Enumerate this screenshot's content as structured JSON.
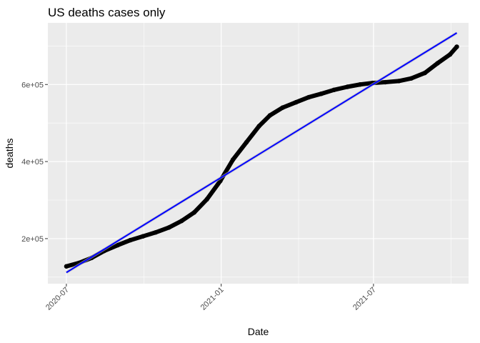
{
  "chart_data": {
    "type": "line",
    "title": "US deaths cases only",
    "xlabel": "Date",
    "ylabel": "deaths",
    "x_ticks": [
      "2020-07",
      "2021-01",
      "2021-07"
    ],
    "y_ticks": [
      "2e+05",
      "4e+05",
      "6e+05"
    ],
    "x_tick_dates": [
      "2020-07-01",
      "2021-01-01",
      "2021-07-01"
    ],
    "y_tick_values": [
      200000,
      400000,
      600000
    ],
    "xlim": [
      "2020-06-09",
      "2021-10-22"
    ],
    "ylim": [
      83000,
      760000
    ],
    "grid": true,
    "colors": {
      "panel": "#ebebeb",
      "grid": "#ffffff",
      "points": "#000000",
      "fit": "#0000ff"
    },
    "series": [
      {
        "values": [
          [
            "2020-07-01",
            128000
          ],
          [
            "2020-07-16",
            137000
          ],
          [
            "2020-07-31",
            150000
          ],
          [
            "2020-08-15",
            168000
          ],
          [
            "2020-08-31",
            183000
          ],
          [
            "2020-09-15",
            196000
          ],
          [
            "2020-09-30",
            206000
          ],
          [
            "2020-10-15",
            216000
          ],
          [
            "2020-10-31",
            229000
          ],
          [
            "2020-11-15",
            246000
          ],
          [
            "2020-11-30",
            268000
          ],
          [
            "2020-12-15",
            302000
          ],
          [
            "2020-12-31",
            350000
          ],
          [
            "2021-01-15",
            405000
          ],
          [
            "2021-01-31",
            450000
          ],
          [
            "2021-02-15",
            492000
          ],
          [
            "2021-02-28",
            520000
          ],
          [
            "2021-03-15",
            540000
          ],
          [
            "2021-03-31",
            554000
          ],
          [
            "2021-04-15",
            567000
          ],
          [
            "2021-04-30",
            576000
          ],
          [
            "2021-05-15",
            586000
          ],
          [
            "2021-05-31",
            594000
          ],
          [
            "2021-06-15",
            600000
          ],
          [
            "2021-06-30",
            604000
          ],
          [
            "2021-07-15",
            606000
          ],
          [
            "2021-07-31",
            609000
          ],
          [
            "2021-08-15",
            616000
          ],
          [
            "2021-08-31",
            630000
          ],
          [
            "2021-09-15",
            655000
          ],
          [
            "2021-09-30",
            678000
          ],
          [
            "2021-10-08",
            698000
          ]
        ]
      },
      {
        "values": [
          [
            "2020-07-01",
            112000
          ],
          [
            "2021-10-08",
            734000
          ]
        ]
      }
    ]
  }
}
